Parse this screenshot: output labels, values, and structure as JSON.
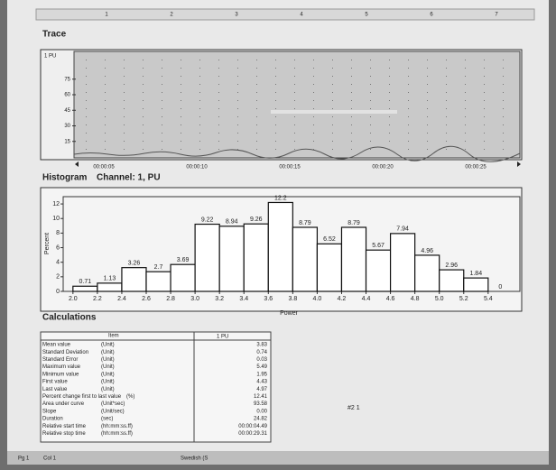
{
  "ruler": {
    "numbers": [
      1,
      2,
      3,
      4,
      5,
      6,
      7
    ]
  },
  "trace": {
    "title": "Trace",
    "channel_label": "1 PU",
    "ylim": [
      0,
      100
    ],
    "yticks": [
      15,
      30,
      45,
      60,
      75
    ],
    "xticks": [
      "00:00:05",
      "00:00:10",
      "00:00:15",
      "00:00:20",
      "00:00:25"
    ]
  },
  "histogram": {
    "type": "histogram",
    "title": "Histogram",
    "channel": "Channel: 1, PU",
    "xlabel": "Power",
    "ylabel": "Percent",
    "color": "#ffffff",
    "bins": [
      2.0,
      2.2,
      2.4,
      2.6,
      2.8,
      3.0,
      3.2,
      3.4,
      3.6,
      3.8,
      4.0,
      4.2,
      4.4,
      4.6,
      4.8,
      5.0,
      5.2,
      5.4,
      5.6
    ],
    "values": [
      0.71,
      1.13,
      3.26,
      2.7,
      3.69,
      9.22,
      8.94,
      9.26,
      12.2,
      8.79,
      6.52,
      8.79,
      5.67,
      7.94,
      4.96,
      2.96,
      1.84,
      0
    ],
    "xlim": [
      1.92,
      5.66
    ],
    "ylim": [
      0,
      13
    ],
    "yticks": [
      0,
      2,
      4,
      6,
      8,
      10,
      12
    ],
    "xticks": [
      {
        "value": 2.0,
        "label": "2.0"
      },
      {
        "value": 2.2,
        "label": "2.2"
      },
      {
        "value": 2.4,
        "label": "2.4"
      },
      {
        "value": 2.6,
        "label": "2.6"
      },
      {
        "value": 2.8,
        "label": "2.8"
      },
      {
        "value": 3.0,
        "label": "3.0"
      },
      {
        "value": 3.2,
        "label": "3.2"
      },
      {
        "value": 3.4,
        "label": "3.4"
      },
      {
        "value": 3.6,
        "label": "3.6"
      },
      {
        "value": 3.8,
        "label": "3.8"
      },
      {
        "value": 4.0,
        "label": "4.0"
      },
      {
        "value": 4.2,
        "label": "4.2"
      },
      {
        "value": 4.4,
        "label": "4.4"
      },
      {
        "value": 4.6,
        "label": "4.6"
      },
      {
        "value": 4.8,
        "label": "4.8"
      },
      {
        "value": 5.0,
        "label": "5.0"
      },
      {
        "value": 5.2,
        "label": "5.2"
      },
      {
        "value": 5.4,
        "label": "5.4"
      }
    ]
  },
  "calculations": {
    "title": "Calculations",
    "header": [
      "Item",
      "1 PU"
    ],
    "rows": [
      [
        "Mean value",
        "(Unit)",
        "3.83"
      ],
      [
        "Standard Deviation",
        "(Unit)",
        "0.74"
      ],
      [
        "Standard Error",
        "(Unit)",
        "0.03"
      ],
      [
        "Maximum value",
        "(Unit)",
        "5.49"
      ],
      [
        "Minimum value",
        "(Unit)",
        "1.95"
      ],
      [
        "First value",
        "(Unit)",
        "4.43"
      ],
      [
        "Last value",
        "(Unit)",
        "4.97"
      ],
      [
        "Percent change first to last value",
        "(%)",
        "12.41"
      ],
      [
        "Area under curve",
        "(Unit*sec)",
        "93.58"
      ],
      [
        "Slope",
        "(Unit/sec)",
        "0.00"
      ],
      [
        "Duration",
        "(sec)",
        "24.82"
      ],
      [
        "Relative start time",
        "(hh:mm:ss.ff)",
        "00:00:04.49"
      ],
      [
        "Relative stop time",
        "(hh:mm:ss.ff)",
        "00:00:29.31"
      ]
    ]
  },
  "cursor": "#2 1",
  "status_bar": [
    "Pg 1",
    "Col 1",
    "Swedish (S"
  ]
}
